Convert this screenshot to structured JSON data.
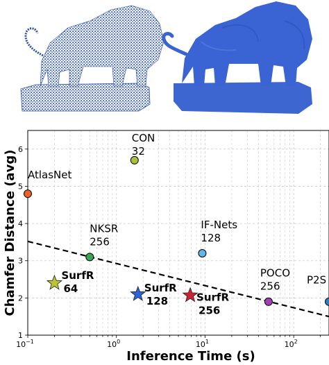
{
  "images": {
    "left": "point-cloud-lion",
    "right": "reconstructed-mesh-lion"
  },
  "chart_data": {
    "type": "scatter",
    "xscale": "log",
    "xlabel": "Inference Time (s)",
    "ylabel": "Chamfer Distance (avg)",
    "xlim": [
      0.1,
      250
    ],
    "ylim": [
      1,
      6.5
    ],
    "xticks": [
      {
        "value": 0.1,
        "base": "10",
        "exp": "−1"
      },
      {
        "value": 1,
        "base": "10",
        "exp": "0"
      },
      {
        "value": 10,
        "base": "10",
        "exp": "1"
      },
      {
        "value": 100,
        "base": "10",
        "exp": "2"
      }
    ],
    "yticks": [
      "1",
      "2",
      "3",
      "4",
      "5",
      "6"
    ],
    "grid": true,
    "trend_line": {
      "style": "dashed",
      "from": [
        0.1,
        3.52
      ],
      "to": [
        250,
        1.5
      ]
    },
    "points": [
      {
        "label": "AtlasNet",
        "x": 0.1,
        "y": 4.8,
        "color": "#e8622a",
        "marker": "circle",
        "bold": false
      },
      {
        "label": "CON\n32",
        "x": 1.6,
        "y": 5.7,
        "color": "#a8c23a",
        "marker": "circle",
        "bold": false
      },
      {
        "label": "NKSR\n256",
        "x": 0.5,
        "y": 3.1,
        "color": "#3aa655",
        "marker": "circle",
        "bold": false
      },
      {
        "label": "IF-Nets\n128",
        "x": 9.3,
        "y": 3.2,
        "color": "#5fb7e5",
        "marker": "circle",
        "bold": false
      },
      {
        "label": "POCO\n256",
        "x": 52,
        "y": 1.9,
        "color": "#a33fb5",
        "marker": "circle",
        "bold": false
      },
      {
        "label": "P2S",
        "x": 250,
        "y": 1.9,
        "color": "#2a7fc0",
        "marker": "circle",
        "bold": false
      },
      {
        "label": "SurfR\n64",
        "x": 0.2,
        "y": 2.4,
        "color": "#b9c632",
        "marker": "star",
        "bold": true
      },
      {
        "label": "SurfR\n128",
        "x": 1.75,
        "y": 2.1,
        "color": "#2b64d6",
        "marker": "star",
        "bold": true
      },
      {
        "label": "SurfR\n256",
        "x": 6.8,
        "y": 2.07,
        "color": "#cc2233",
        "marker": "star",
        "bold": true
      }
    ]
  }
}
